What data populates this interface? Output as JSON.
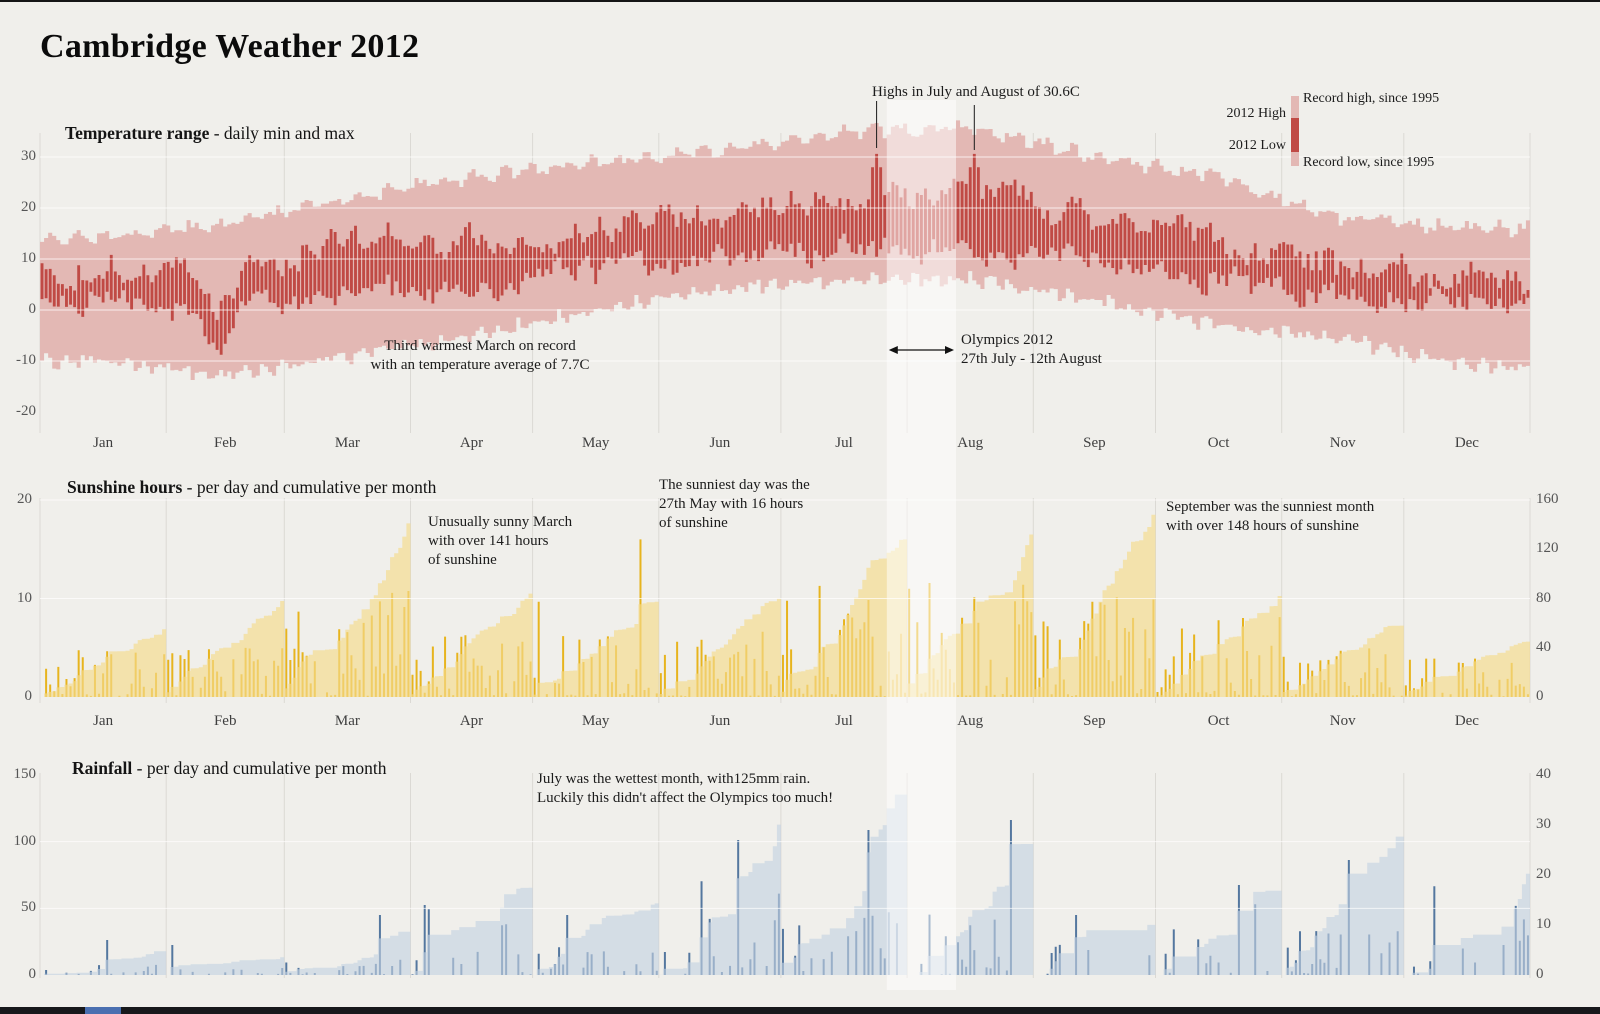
{
  "page_title": "Cambridge Weather 2012",
  "chart_data": [
    {
      "type": "bar",
      "id": "temperature-range",
      "title": "Temperature range",
      "subtitle": " - daily min and max",
      "unit": "C",
      "x_ticks": [
        "Jan",
        "Feb",
        "Mar",
        "Apr",
        "May",
        "Jun",
        "Jul",
        "Aug",
        "Sep",
        "Oct",
        "Nov",
        "Dec"
      ],
      "y_axis": {
        "ticks": [
          30,
          20,
          10,
          0,
          -10,
          -20
        ],
        "lim": [
          -24,
          40
        ]
      },
      "colors": {
        "record_band": "#e3b8b4",
        "daily_bar": "#c04a45"
      },
      "legend": {
        "high_label": "2012 High",
        "low_label": "2012 Low",
        "record_high_label": "Record high, since 1995",
        "record_low_label": "Record low, since 1995"
      },
      "series": [
        {
          "name": "2012 monthly mean daily high (C)",
          "values": [
            8,
            7,
            14,
            12,
            17,
            19,
            22,
            23,
            19,
            13,
            9,
            7
          ]
        },
        {
          "name": "2012 monthly mean daily low (C)",
          "values": [
            2,
            -1,
            4,
            4,
            8,
            10,
            12,
            12,
            9,
            6,
            3,
            1
          ]
        },
        {
          "name": "Record high since 1995, monthly (C)",
          "values": [
            14,
            17,
            22,
            26,
            29,
            31,
            35,
            36,
            30,
            26,
            18,
            16
          ]
        },
        {
          "name": "Record low since 1995, monthly (C)",
          "values": [
            -10,
            -13,
            -9,
            -5,
            0,
            4,
            6,
            6,
            2,
            -3,
            -6,
            -11
          ]
        }
      ],
      "notable": {
        "max_2012_high_c": 30.6,
        "march_mean_c": 7.7
      },
      "annotations": [
        {
          "id": "july-august-highs",
          "lines": [
            "Highs in July and August of 30.6C"
          ]
        },
        {
          "id": "march-record",
          "lines": [
            "Third warmest March on record",
            "with an temperature average of 7.7C"
          ]
        },
        {
          "id": "olympics",
          "lines": [
            "Olympics 2012",
            "27th July - 12th August"
          ]
        }
      ]
    },
    {
      "type": "bar",
      "id": "sunshine-hours",
      "title": "Sunshine hours",
      "subtitle": " - per day and cumulative per month",
      "x_ticks": [
        "Jan",
        "Feb",
        "Mar",
        "Apr",
        "May",
        "Jun",
        "Jul",
        "Aug",
        "Sep",
        "Oct",
        "Nov",
        "Dec"
      ],
      "y_axis_left": {
        "ticks": [
          20,
          10,
          0
        ],
        "measure": "hours per day",
        "lim": [
          0,
          20
        ]
      },
      "y_axis_right": {
        "ticks": [
          160,
          120,
          80,
          40,
          0
        ],
        "measure": "cumulative hours per month",
        "lim": [
          0,
          160
        ]
      },
      "colors": {
        "daily_bar": "#e7b41e",
        "cumulative_area": "#f5da8c"
      },
      "series": [
        {
          "name": "Monthly sunshine total (hours)",
          "values": [
            55,
            78,
            141,
            84,
            62,
            80,
            128,
            132,
            148,
            82,
            58,
            45
          ]
        }
      ],
      "notable": {
        "sunniest_day": "27th May",
        "sunniest_day_hours": 16,
        "march_hours": 141,
        "september_hours": 148
      },
      "annotations": [
        {
          "id": "sunny-march",
          "lines": [
            "Unusually sunny March",
            "with over 141 hours",
            "of sunshine"
          ]
        },
        {
          "id": "sunniest-day",
          "lines": [
            "The sunniest day was the",
            "27th May with 16 hours",
            "of sunshine"
          ]
        },
        {
          "id": "sunny-september",
          "lines": [
            "September was the sunniest month",
            "with over 148 hours of sunshine"
          ]
        }
      ]
    },
    {
      "type": "bar",
      "id": "rainfall",
      "title": "Rainfall",
      "subtitle": " - per day and cumulative per month",
      "y_axis_left": {
        "ticks": [
          150,
          100,
          50,
          0
        ],
        "measure": "cumulative mm per month",
        "lim": [
          0,
          150
        ]
      },
      "y_axis_right": {
        "ticks": [
          40,
          30,
          20,
          10,
          0
        ],
        "measure": "mm per day",
        "lim": [
          0,
          40
        ]
      },
      "colors": {
        "daily_bar": "#54779f",
        "cumulative_area": "#c3d2e2"
      },
      "series": [
        {
          "name": "Monthly rainfall total (mm)",
          "values": [
            14,
            9,
            24,
            65,
            48,
            110,
            125,
            80,
            34,
            62,
            90,
            76
          ]
        }
      ],
      "notable": {
        "wettest_month": "July",
        "july_rain_mm": 125
      },
      "annotations": [
        {
          "id": "wettest-july",
          "lines": [
            "July was the wettest month, with125mm rain.",
            "Luckily this didn't affect the Olympics too much!"
          ]
        }
      ]
    }
  ],
  "highlight_band": {
    "label": "Olympics 2012",
    "start": "27th July",
    "end": "12th August"
  }
}
